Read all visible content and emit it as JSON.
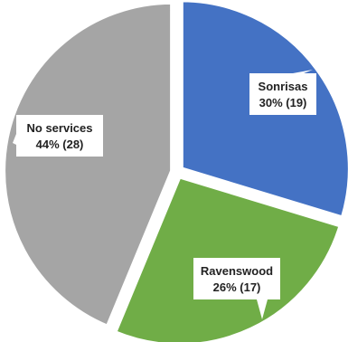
{
  "chart_data": {
    "type": "pie",
    "title": "",
    "categories": [
      "Sonrisas",
      "Ravenswood",
      "No services"
    ],
    "values": [
      19,
      17,
      28
    ],
    "percent": [
      30,
      26,
      44
    ],
    "labels": [
      {
        "name": "Sonrisas",
        "value_text": "30% (19)"
      },
      {
        "name": "Ravenswood",
        "value_text": "26% (17)"
      },
      {
        "name": "No services",
        "value_text": "44% (28)"
      }
    ],
    "colors": [
      "#4472C4",
      "#70AD47",
      "#A5A5A5"
    ],
    "legend": "none",
    "start": "12 o'clock",
    "direction": "clockwise"
  }
}
